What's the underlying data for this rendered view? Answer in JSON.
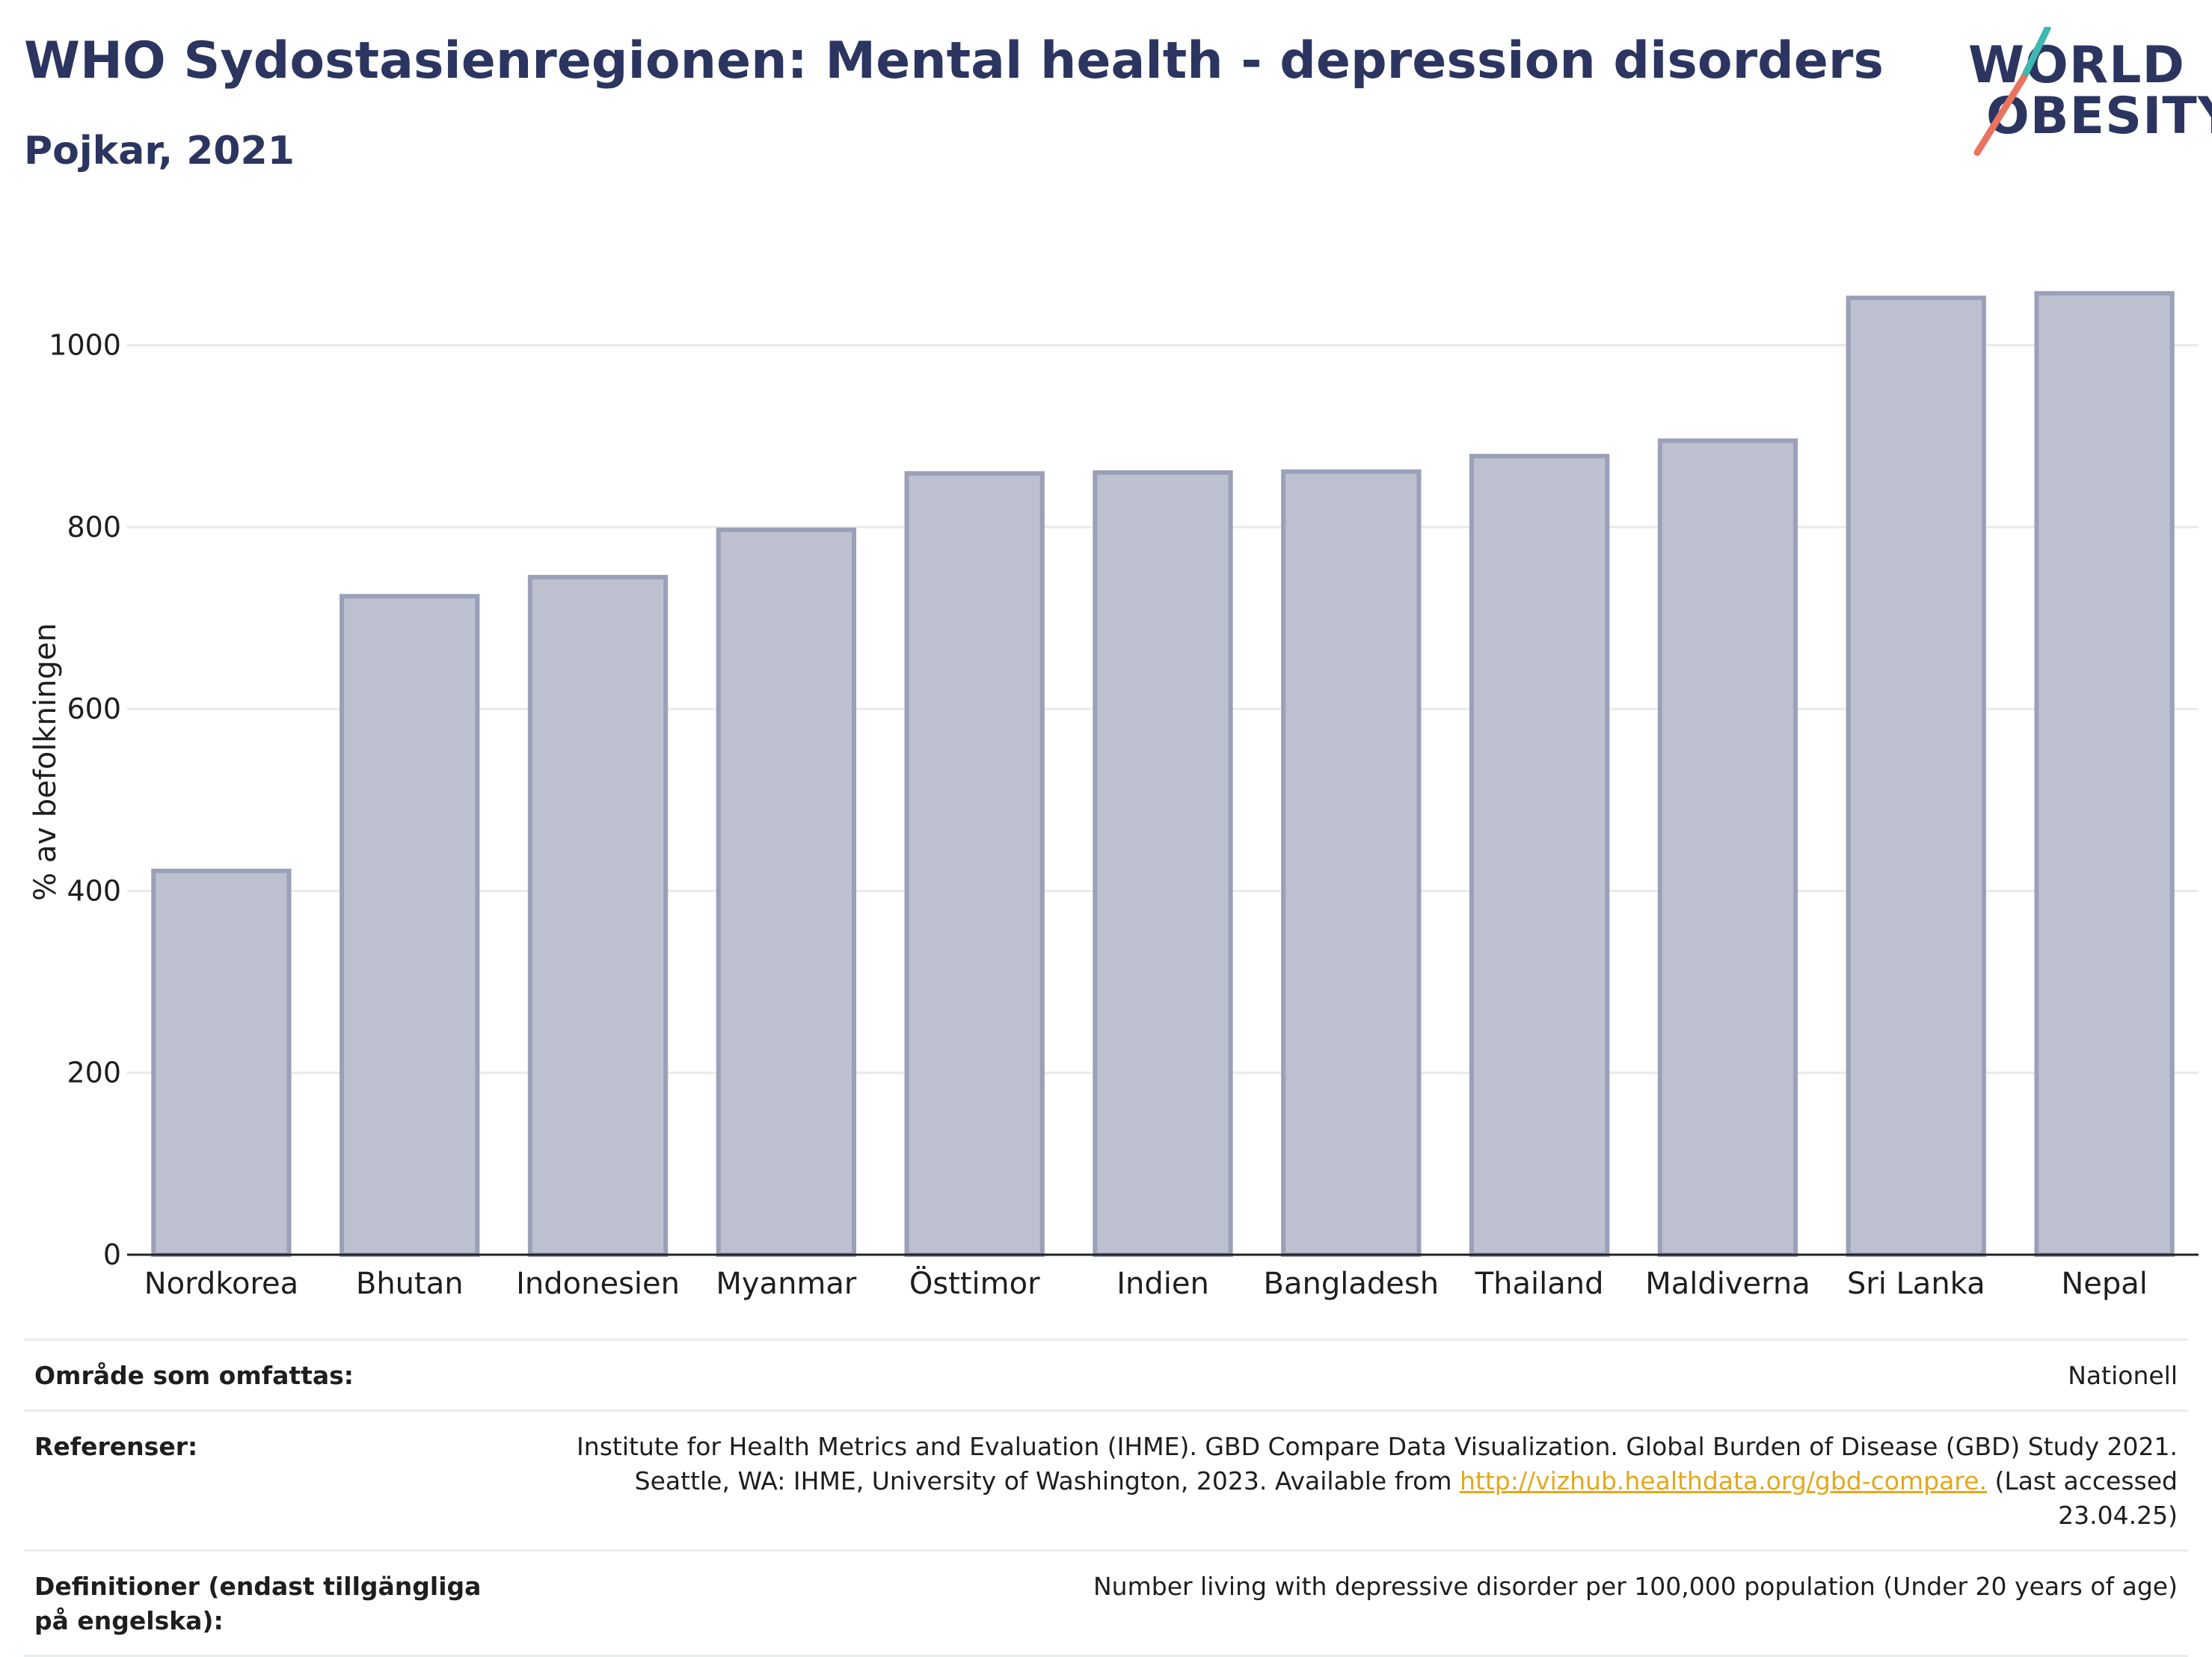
{
  "header": {
    "title": "WHO Sydostasienregionen: Mental health - depression disorders",
    "subtitle": "Pojkar, 2021"
  },
  "logo": {
    "line1": "WORLD",
    "line2": "OBESITY",
    "colors": {
      "text": "#2b3560",
      "slash_top": "#3fb8b0",
      "slash_bottom": "#e8735f"
    }
  },
  "chart_data": {
    "type": "bar",
    "title": "WHO Sydostasienregionen: Mental health - depression disorders",
    "subtitle": "Pojkar, 2021",
    "xlabel": "",
    "ylabel": "% av befolkningen",
    "categories": [
      "Nordkorea",
      "Bhutan",
      "Indonesien",
      "Myanmar",
      "Östtimor",
      "Indien",
      "Bangladesh",
      "Thailand",
      "Maldiverna",
      "Sri Lanka",
      "Nepal"
    ],
    "values": [
      422,
      724,
      745,
      797,
      859,
      860,
      861,
      878,
      895,
      1052,
      1057
    ],
    "ylim": [
      0,
      1100
    ],
    "yticks": [
      0,
      200,
      400,
      600,
      800,
      1000
    ],
    "grid": true,
    "legend": "none",
    "colors": {
      "bar_fill": "#bdc0cf",
      "bar_stroke": "#9aa0b8",
      "axis": "#222222",
      "grid": "#e9e9ee"
    }
  },
  "footer": {
    "rows": [
      {
        "label": "Område som omfattas:",
        "value": "Nationell"
      },
      {
        "label": "Referenser:",
        "value_line1": "Institute for Health Metrics and Evaluation (IHME). GBD Compare Data Visualization. Global Burden of Disease (GBD) Study 2021.",
        "value_line2_pre": "Seattle, WA: IHME, University of Washington, 2023. Available from ",
        "link": "http://vizhub.healthdata.org/gbd-compare.",
        "value_line2_post": " (Last accessed 23.04.25)"
      },
      {
        "label": "Definitioner (endast tillgängliga på engelska):",
        "value": "Number living with depressive disorder per 100,000 population (Under 20 years of age)"
      }
    ]
  }
}
